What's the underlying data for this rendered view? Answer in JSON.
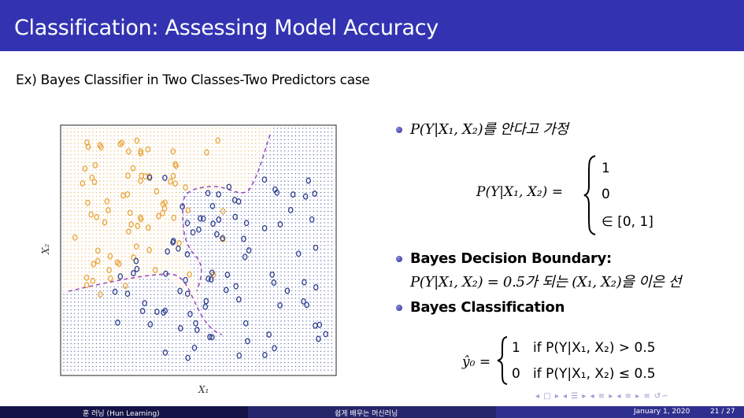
{
  "slide": {
    "title": "Classification: Assessing Model Accuracy",
    "subtitle": "Ex) Bayes Classifier in Two Classes-Two Predictors case"
  },
  "figure": {
    "xlabel": "X₁",
    "ylabel": "X₂",
    "colors": {
      "orange": "#e8a33a",
      "blue": "#2e3f8f",
      "boundary": "#9b4fc0"
    }
  },
  "bullets": [
    {
      "id": "b1",
      "text": "P(Y|X₁, X₂)를 안다고 가정"
    },
    {
      "id": "b2",
      "title": "Bayes Decision Boundary:",
      "text": "P(Y|X₁, X₂) = 0.5가 되는 (X₁, X₂)을 이은 선"
    },
    {
      "id": "b3",
      "title": "Bayes Classification"
    }
  ],
  "eq1": {
    "lhs": "P(Y|X₁, X₂) =",
    "case1": "1",
    "case2": "0",
    "case3": "∈ [0, 1]"
  },
  "eq2": {
    "lhs": "ŷ₀ =",
    "case1": "1   if P(Y|X₁, X₂) > 0.5",
    "case2": "0   if P(Y|X₁, X₂) ≤ 0.5"
  },
  "footer": {
    "author": "훈 러닝 (Hun Learning)",
    "center": "쉽게 배우는 머신러닝",
    "date": "January 1, 2020",
    "page": "21 / 27"
  },
  "nav": "◂ □ ▸  ◂ ☰ ▸  ◂ ≡ ▸  ◂ ≡ ▸   ≡   ↺∽"
}
